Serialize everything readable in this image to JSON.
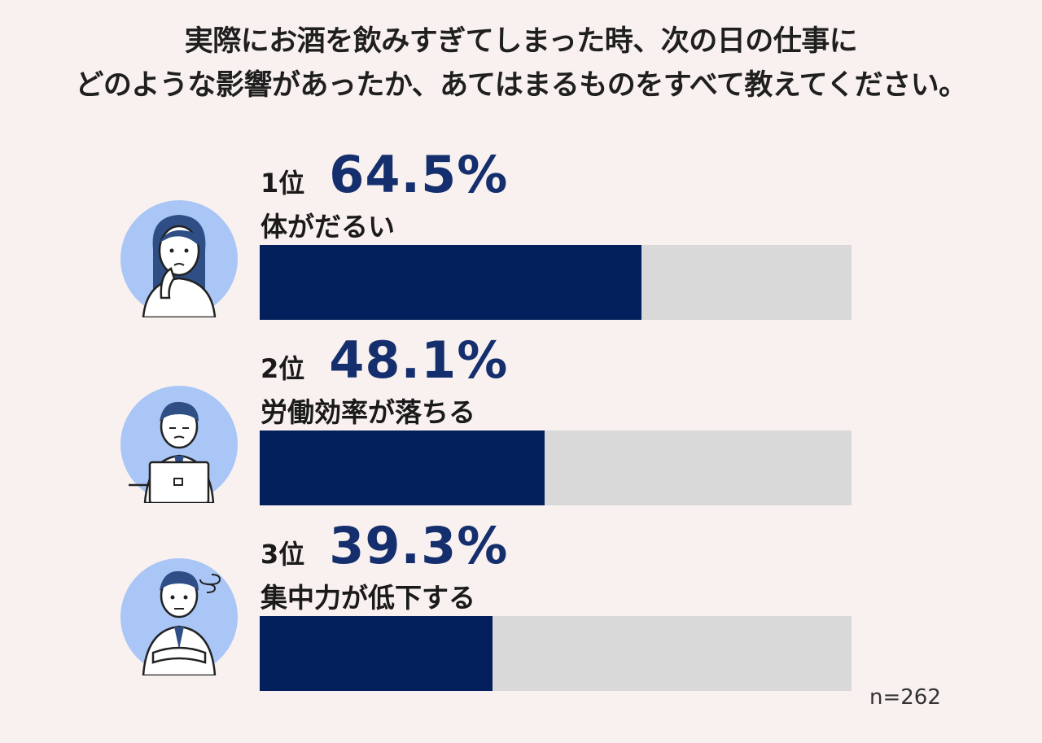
{
  "title": {
    "line1": "実際にお酒を飲みすぎてしまった時、次の日の仕事に",
    "line2": "どのような影響があったか、あてはまるものをすべて教えてください。"
  },
  "chart_data": {
    "type": "bar",
    "orientation": "horizontal",
    "categories": [
      "体がだるい",
      "労働効率が落ちる",
      "集中力が低下する"
    ],
    "ranks": [
      "1位",
      "2位",
      "3位"
    ],
    "values": [
      64.5,
      48.1,
      39.3
    ],
    "value_labels": [
      "64.5%",
      "48.1%",
      "39.3%"
    ],
    "xlim": [
      0,
      100
    ],
    "unit": "%",
    "colors": {
      "fill": "#03205c",
      "track": "#d9d9d9",
      "value_text": "#152f6e"
    },
    "note": "n=262"
  },
  "icons": [
    "woman-tired-icon",
    "man-laptop-icon",
    "man-dizzy-icon"
  ]
}
